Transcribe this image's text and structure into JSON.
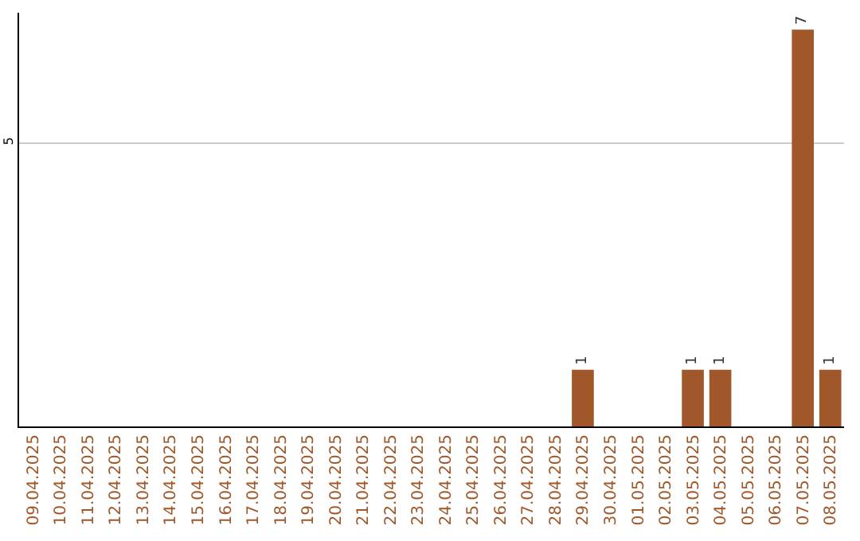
{
  "chart_data": {
    "type": "bar",
    "categories": [
      "09.04.2025",
      "10.04.2025",
      "11.04.2025",
      "12.04.2025",
      "13.04.2025",
      "14.04.2025",
      "15.04.2025",
      "16.04.2025",
      "17.04.2025",
      "18.04.2025",
      "19.04.2025",
      "20.04.2025",
      "21.04.2025",
      "22.04.2025",
      "23.04.2025",
      "24.04.2025",
      "25.04.2025",
      "26.04.2025",
      "27.04.2025",
      "28.04.2025",
      "29.04.2025",
      "30.04.2025",
      "01.05.2025",
      "02.05.2025",
      "03.05.2025",
      "04.05.2025",
      "05.05.2025",
      "06.05.2025",
      "07.05.2025",
      "08.05.2025"
    ],
    "values": [
      null,
      null,
      null,
      null,
      null,
      null,
      null,
      null,
      null,
      null,
      null,
      null,
      null,
      null,
      null,
      null,
      null,
      null,
      null,
      null,
      1,
      null,
      null,
      null,
      1,
      1,
      null,
      null,
      7,
      1
    ],
    "color": "#a0582a",
    "ylim": [
      0,
      7.3
    ],
    "yticks": [
      5
    ],
    "grid": "y",
    "data_labels": true
  }
}
